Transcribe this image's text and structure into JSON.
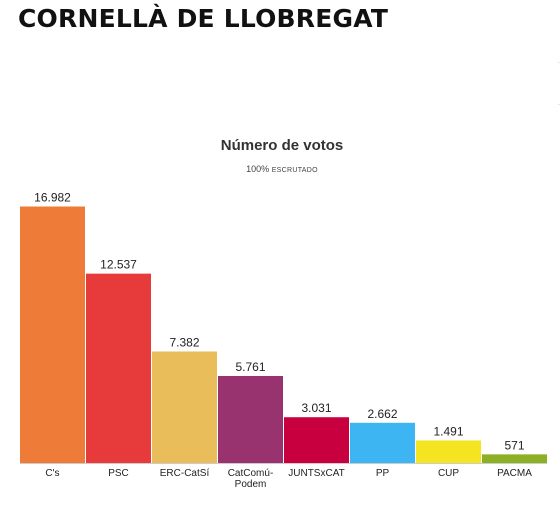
{
  "page": {
    "heading": "CORNELLÀ DE LLOBREGAT"
  },
  "chart_data": {
    "type": "bar",
    "title": "Número de votos",
    "subtitle_prefix": "100%",
    "subtitle_suffix": "ESCRUTADO",
    "xlabel": "",
    "ylabel": "",
    "ylim": [
      0,
      17500
    ],
    "grid": false,
    "legend": "none",
    "categories": [
      "C's",
      "PSC",
      "ERC-CatSí",
      [
        "CatComú-",
        "Podem"
      ],
      "JUNTSxCAT",
      "PP",
      "CUP",
      "PACMA"
    ],
    "values": [
      16982,
      12537,
      7382,
      5761,
      3031,
      2662,
      1491,
      571
    ],
    "value_labels": [
      "16.982",
      "12.537",
      "7.382",
      "5.761",
      "3.031",
      "2.662",
      "1.491",
      "571"
    ],
    "colors": [
      "#ee7b37",
      "#e73b3b",
      "#e8bd5a",
      "#99336f",
      "#c8003f",
      "#3db5f2",
      "#f5e420",
      "#8cb023"
    ]
  }
}
